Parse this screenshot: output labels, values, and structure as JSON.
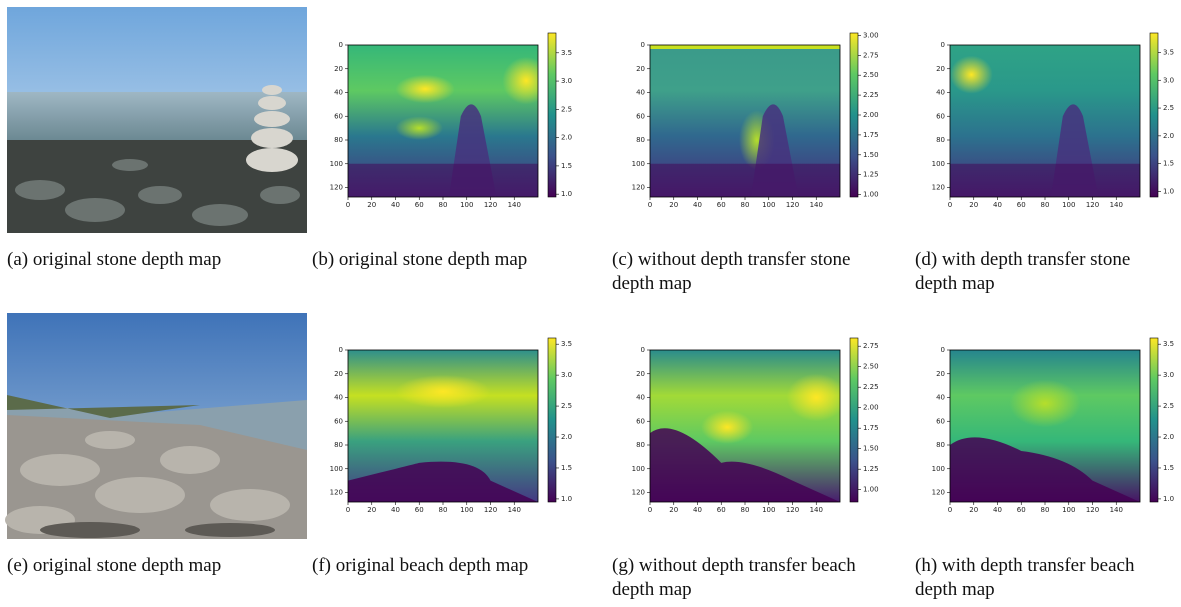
{
  "panels": [
    {
      "caption": "(a) original stone depth map"
    },
    {
      "caption": "(b) original stone depth map",
      "xlim": [
        0,
        160
      ],
      "ylim": [
        0,
        128
      ],
      "xticks": [
        0,
        20,
        40,
        60,
        80,
        100,
        120,
        140
      ],
      "yticks": [
        0,
        20,
        40,
        60,
        80,
        100,
        120
      ],
      "colorbar": {
        "lim": [
          0.95,
          3.85
        ],
        "ticks": [
          {
            "value": 1,
            "label": "1.0"
          },
          {
            "value": 1.5,
            "label": "1.5"
          },
          {
            "value": 2,
            "label": "2.0"
          },
          {
            "value": 2.5,
            "label": "2.5"
          },
          {
            "value": 3,
            "label": "3.0"
          },
          {
            "value": 3.5,
            "label": "3.5"
          }
        ]
      }
    },
    {
      "caption": "(c) without depth transfer stone depth map",
      "xlim": [
        0,
        160
      ],
      "ylim": [
        0,
        128
      ],
      "xticks": [
        0,
        20,
        40,
        60,
        80,
        100,
        120,
        140
      ],
      "yticks": [
        0,
        20,
        40,
        60,
        80,
        100,
        120
      ],
      "colorbar": {
        "lim": [
          0.97,
          3.03
        ],
        "ticks": [
          {
            "value": 1,
            "label": "1.00"
          },
          {
            "value": 1.25,
            "label": "1.25"
          },
          {
            "value": 1.5,
            "label": "1.50"
          },
          {
            "value": 1.75,
            "label": "1.75"
          },
          {
            "value": 2,
            "label": "2.00"
          },
          {
            "value": 2.25,
            "label": "2.25"
          },
          {
            "value": 2.5,
            "label": "2.50"
          },
          {
            "value": 2.75,
            "label": "2.75"
          },
          {
            "value": 3,
            "label": "3.00"
          }
        ]
      }
    },
    {
      "caption": "(d) with depth transfer stone depth map",
      "xlim": [
        0,
        160
      ],
      "ylim": [
        0,
        128
      ],
      "xticks": [
        0,
        20,
        40,
        60,
        80,
        100,
        120,
        140
      ],
      "yticks": [
        0,
        20,
        40,
        60,
        80,
        100,
        120
      ],
      "colorbar": {
        "lim": [
          0.9,
          3.85
        ],
        "ticks": [
          {
            "value": 1,
            "label": "1.0"
          },
          {
            "value": 1.5,
            "label": "1.5"
          },
          {
            "value": 2,
            "label": "2.0"
          },
          {
            "value": 2.5,
            "label": "2.5"
          },
          {
            "value": 3,
            "label": "3.0"
          },
          {
            "value": 3.5,
            "label": "3.5"
          }
        ]
      }
    },
    {
      "caption": "(e) original stone depth map"
    },
    {
      "caption": "(f) original beach depth map",
      "xlim": [
        0,
        160
      ],
      "ylim": [
        0,
        128
      ],
      "xticks": [
        0,
        20,
        40,
        60,
        80,
        100,
        120,
        140
      ],
      "yticks": [
        0,
        20,
        40,
        60,
        80,
        100,
        120
      ],
      "colorbar": {
        "lim": [
          0.95,
          3.6
        ],
        "ticks": [
          {
            "value": 1,
            "label": "1.0"
          },
          {
            "value": 1.5,
            "label": "1.5"
          },
          {
            "value": 2,
            "label": "2.0"
          },
          {
            "value": 2.5,
            "label": "2.5"
          },
          {
            "value": 3,
            "label": "3.0"
          },
          {
            "value": 3.5,
            "label": "3.5"
          }
        ]
      }
    },
    {
      "caption": "(g) without depth transfer beach depth map",
      "xlim": [
        0,
        160
      ],
      "ylim": [
        0,
        128
      ],
      "xticks": [
        0,
        20,
        40,
        60,
        80,
        100,
        120,
        140
      ],
      "yticks": [
        0,
        20,
        40,
        60,
        80,
        100,
        120
      ],
      "colorbar": {
        "lim": [
          0.85,
          2.85
        ],
        "ticks": [
          {
            "value": 1,
            "label": "1.00"
          },
          {
            "value": 1.25,
            "label": "1.25"
          },
          {
            "value": 1.5,
            "label": "1.50"
          },
          {
            "value": 1.75,
            "label": "1.75"
          },
          {
            "value": 2,
            "label": "2.00"
          },
          {
            "value": 2.25,
            "label": "2.25"
          },
          {
            "value": 2.5,
            "label": "2.50"
          },
          {
            "value": 2.75,
            "label": "2.75"
          }
        ]
      }
    },
    {
      "caption": "(h) with depth transfer beach depth map",
      "xlim": [
        0,
        160
      ],
      "ylim": [
        0,
        128
      ],
      "xticks": [
        0,
        20,
        40,
        60,
        80,
        100,
        120,
        140
      ],
      "yticks": [
        0,
        20,
        40,
        60,
        80,
        100,
        120
      ],
      "colorbar": {
        "lim": [
          0.95,
          3.6
        ],
        "ticks": [
          {
            "value": 1,
            "label": "1.0"
          },
          {
            "value": 1.5,
            "label": "1.5"
          },
          {
            "value": 2,
            "label": "2.0"
          },
          {
            "value": 2.5,
            "label": "2.5"
          },
          {
            "value": 3,
            "label": "3.0"
          },
          {
            "value": 3.5,
            "label": "3.5"
          }
        ]
      }
    }
  ]
}
